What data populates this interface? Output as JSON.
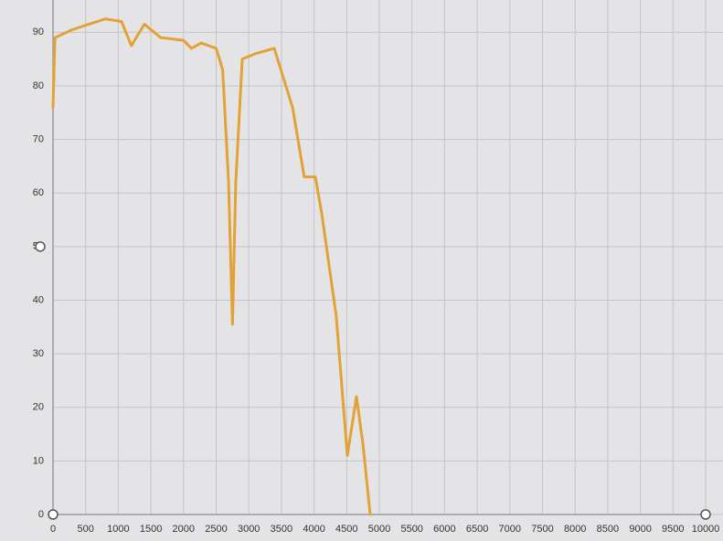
{
  "chart_data": {
    "type": "line",
    "x": [
      0,
      20,
      30,
      300,
      800,
      1050,
      1200,
      1400,
      1650,
      2000,
      2120,
      2270,
      2500,
      2600,
      2690,
      2750,
      2800,
      2900,
      3100,
      3390,
      3670,
      3850,
      4020,
      4120,
      4340,
      4510,
      4650,
      4750,
      4860
    ],
    "series": [
      {
        "color": "#e2a235",
        "values": [
          76,
          85,
          89,
          90.5,
          92.5,
          92,
          87.5,
          91.5,
          89,
          88.5,
          87,
          88,
          87,
          83,
          62,
          35.5,
          62,
          85,
          86,
          87,
          76,
          63,
          63,
          56,
          37,
          11,
          22,
          13,
          0
        ]
      }
    ],
    "xlim": [
      0,
      10000
    ],
    "xticks": [
      0,
      500,
      1000,
      1500,
      2000,
      2500,
      3000,
      3500,
      4000,
      4500,
      5000,
      5500,
      6000,
      6500,
      7000,
      7500,
      8000,
      8500,
      9000,
      9500,
      10000
    ],
    "ylim": [
      0,
      95
    ],
    "yticks": [
      0,
      10,
      20,
      30,
      40,
      50,
      60,
      70,
      80,
      90
    ],
    "grid": true
  }
}
